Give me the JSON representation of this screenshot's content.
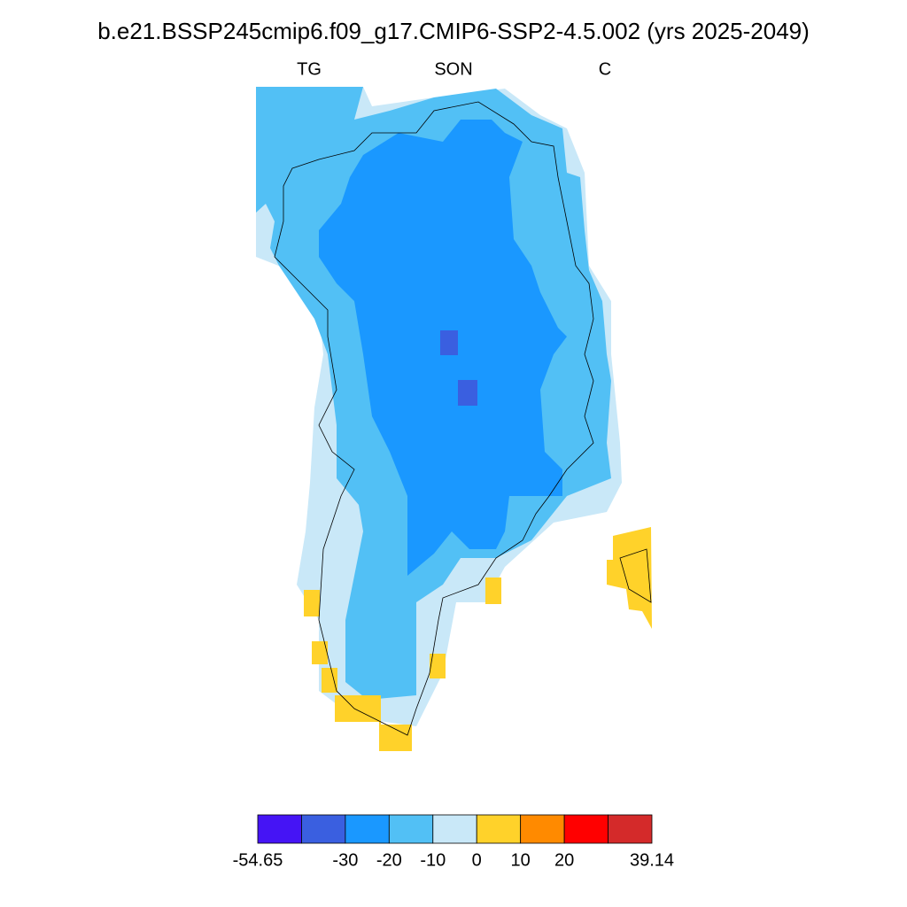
{
  "title": "b.e21.BSSP245cmip6.f09_g17.CMIP6-SSP2-4.5.002 (yrs 2025-2049)",
  "left_label": "TG",
  "center_label": "SON",
  "right_label": "C",
  "colorbar": {
    "colors": [
      "#4514f5",
      "#3a5fe0",
      "#1a98ff",
      "#52c0f5",
      "#c9e8f8",
      "#ffd22a",
      "#ff8a00",
      "#ff0000",
      "#d42a2a"
    ],
    "ticks": [
      -54.65,
      null,
      -30,
      -20,
      -10,
      0,
      10,
      20,
      null,
      39.14
    ]
  }
}
